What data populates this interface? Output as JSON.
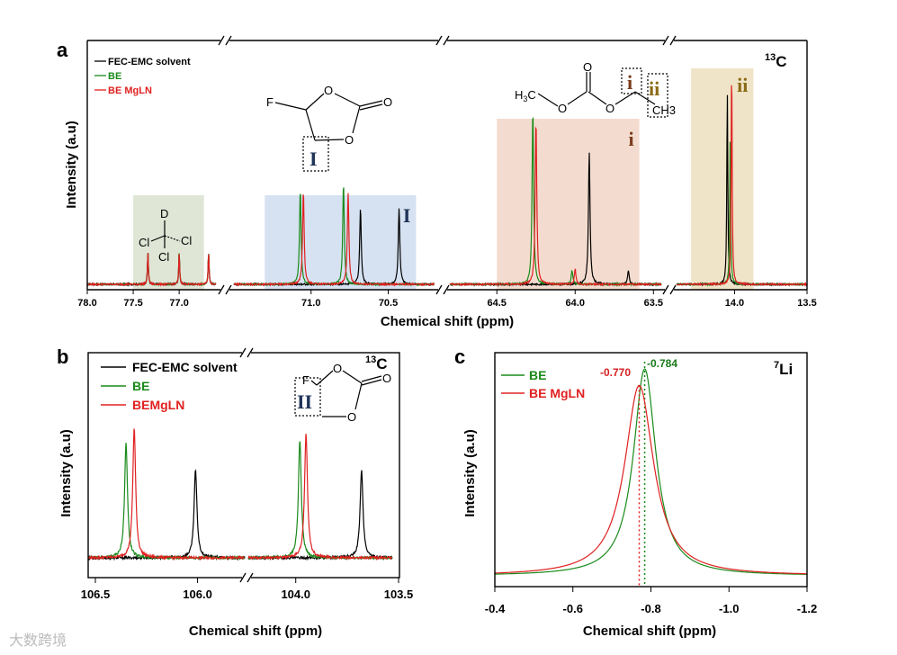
{
  "figure": {
    "watermark": "大数跨境",
    "colors": {
      "black": "#000000",
      "green": "#1a8a1a",
      "red": "#e02020",
      "region_green": "#dfe6d6",
      "region_blue": "#d6e2f1",
      "region_pink": "#f3dccf",
      "region_gold": "#efe4c7",
      "roman_navy": "#1f3358",
      "roman_brown": "#7a3b1c",
      "roman_gold": "#8a6a14",
      "anno_red": "#d42020",
      "anno_green": "#1a7a1a"
    }
  },
  "chart_data": [
    {
      "panel": "a",
      "type": "line",
      "nucleus_prefix": "13",
      "nucleus": "C",
      "xlabel": "Chemical shift (ppm)",
      "ylabel": "Intensity (a.u)",
      "legend": [
        "FEC-EMC solvent",
        "BE",
        "BE MgLN"
      ],
      "segments": [
        {
          "xlim": [
            78.0,
            76.6
          ],
          "ticks": [
            "78.0",
            "77.5",
            "77.0"
          ],
          "tick_values": [
            78.0,
            77.5,
            77.0
          ]
        },
        {
          "xlim": [
            71.5,
            70.2
          ],
          "ticks": [
            "71.0",
            "70.5"
          ],
          "tick_values": [
            71.0,
            70.5
          ]
        },
        {
          "xlim": [
            64.8,
            63.45
          ],
          "ticks": [
            "64.5",
            "64.0",
            "63.5"
          ],
          "tick_values": [
            64.5,
            64.0,
            63.5
          ]
        },
        {
          "xlim": [
            14.4,
            13.5
          ],
          "ticks": [
            "14.0",
            "13.5"
          ],
          "tick_values": [
            14.0,
            13.5
          ]
        }
      ],
      "regions": [
        {
          "segment": 0,
          "x": [
            77.5,
            76.73
          ],
          "label": "",
          "color": "region_green"
        },
        {
          "segment": 1,
          "x": [
            71.3,
            70.32
          ],
          "label": "I",
          "color": "region_blue"
        },
        {
          "segment": 2,
          "x": [
            64.5,
            63.59
          ],
          "label": "i",
          "color": "region_pink"
        },
        {
          "segment": 3,
          "x": [
            14.3,
            13.87
          ],
          "label": "ii",
          "color": "region_gold"
        }
      ],
      "peaks": {
        "FEC-EMC solvent": [
          [
            77.34,
            0.23
          ],
          [
            77.0,
            0.23
          ],
          [
            76.68,
            0.23
          ],
          [
            70.68,
            0.55
          ],
          [
            70.43,
            0.55
          ],
          [
            63.91,
            0.95
          ],
          [
            63.66,
            0.1
          ],
          [
            14.05,
            1.4
          ]
        ],
        "BE": [
          [
            77.34,
            0.23
          ],
          [
            77.0,
            0.23
          ],
          [
            76.68,
            0.23
          ],
          [
            71.07,
            0.68
          ],
          [
            70.79,
            0.72
          ],
          [
            64.27,
            1.25
          ],
          [
            64.02,
            0.1
          ],
          [
            14.03,
            1.05
          ]
        ],
        "BE MgLN": [
          [
            77.34,
            0.23
          ],
          [
            77.0,
            0.23
          ],
          [
            76.68,
            0.23
          ],
          [
            71.05,
            0.67
          ],
          [
            70.76,
            0.66
          ],
          [
            64.25,
            1.18
          ],
          [
            64.0,
            0.11
          ],
          [
            14.02,
            1.6
          ]
        ]
      },
      "molecules": {
        "FEC": {
          "atoms": [
            "F",
            "O",
            "O",
            "O"
          ],
          "label": "I"
        },
        "CDCl3": {
          "atoms": [
            "D",
            "Cl",
            "Cl",
            "Cl"
          ]
        },
        "EMC": {
          "atoms": [
            "H3C",
            "O",
            "O",
            "O",
            "CH3"
          ],
          "h_sub": "3",
          "labels": [
            "i",
            "ii"
          ]
        }
      }
    },
    {
      "panel": "b",
      "type": "line",
      "nucleus_prefix": "13",
      "nucleus": "C",
      "xlabel": "Chemical shift (ppm)",
      "ylabel": "Intensity (a.u)",
      "legend": [
        "FEC-EMC solvent",
        "BE",
        "BEMgLN"
      ],
      "segments": [
        {
          "xlim": [
            106.5,
            105.8
          ],
          "ticks": [
            "106.5",
            "106.0"
          ],
          "tick_values": [
            106.5,
            106.0
          ]
        },
        {
          "xlim": [
            104.2,
            103.5
          ],
          "ticks": [
            "104.0",
            "103.5"
          ],
          "tick_values": [
            104.0,
            103.5
          ]
        }
      ],
      "peaks": {
        "FEC-EMC solvent": [
          [
            106.01,
            0.72
          ],
          [
            103.68,
            0.72
          ]
        ],
        "BE": [
          [
            106.35,
            0.95
          ],
          [
            103.98,
            0.97
          ]
        ],
        "BEMgLN": [
          [
            106.31,
            1.07
          ],
          [
            103.95,
            1.02
          ]
        ]
      },
      "molecule": {
        "atoms": [
          "F",
          "O",
          "O",
          "O"
        ],
        "label": "II"
      }
    },
    {
      "panel": "c",
      "type": "line",
      "nucleus_prefix": "7",
      "nucleus": "Li",
      "xlabel": "Chemical shift (ppm)",
      "ylabel": "Intensity (a.u)",
      "xlim": [
        -0.4,
        -1.2
      ],
      "ticks": [
        "-0.4",
        "-0.6",
        "-0.8",
        "-1.0",
        "-1.2"
      ],
      "tick_values": [
        -0.4,
        -0.6,
        -0.8,
        -1.0,
        -1.2
      ],
      "legend": [
        "BE",
        "BE MgLN"
      ],
      "series": [
        {
          "name": "BE",
          "center": -0.784,
          "height": 1.0,
          "width": 0.035
        },
        {
          "name": "BE MgLN",
          "center": -0.77,
          "height": 0.92,
          "width": 0.045
        }
      ],
      "annotations": [
        "-0.770",
        "-0.784"
      ]
    }
  ]
}
